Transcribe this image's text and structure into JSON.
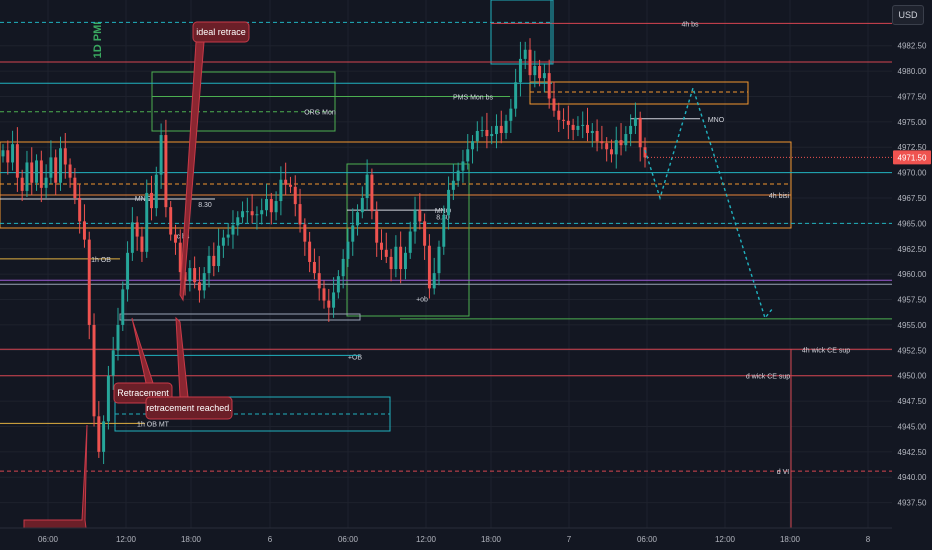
{
  "currency_button": "USD",
  "watermark": "1D PMI",
  "last_price_label": "4971.50",
  "chart_data": {
    "type": "candlestick",
    "instrument_currency": "USD",
    "ylim": [
      4935,
      4987
    ],
    "price_ticks": [
      "4982.50",
      "4980.00",
      "4977.50",
      "4975.00",
      "4972.50",
      "4970.00",
      "4967.50",
      "4965.00",
      "4962.50",
      "4960.00",
      "4957.50",
      "4955.00",
      "4952.50",
      "4950.00",
      "4947.50",
      "4945.00",
      "4942.50",
      "4940.00",
      "4937.50"
    ],
    "time_ticks": [
      "06:00",
      "12:00",
      "18:00",
      "6",
      "06:00",
      "12:00",
      "18:00",
      "7",
      "06:00",
      "12:00",
      "18:00",
      "8"
    ],
    "last_price": 4971.5,
    "closes": [
      4972.2,
      4971,
      4972.8,
      4969.5,
      4968.2,
      4971,
      4969,
      4971.2,
      4968.5,
      4969.5,
      4971.5,
      4969,
      4972.4,
      4970.8,
      4969.5,
      4967.5,
      4965.2,
      4963.4,
      4955,
      4946,
      4942.5,
      4945.5,
      4950,
      4952.5,
      4955,
      4958.5,
      4962.1,
      4965.1,
      4963.7,
      4962.2,
      4968,
      4966.5,
      4969.8,
      4973.7,
      4966.6,
      4963.9,
      4963.1,
      4960.2,
      4959.3,
      4960.6,
      4959.2,
      4958.4,
      4960.1,
      4961.8,
      4960.8,
      4962.8,
      4963.6,
      4963.9,
      4964.8,
      4965.6,
      4966.2,
      4966.2,
      4965.8,
      4965.9,
      4966.3,
      4967.4,
      4966.1,
      4967.2,
      4969.3,
      4968.8,
      4968.6,
      4966.9,
      4964.9,
      4963.2,
      4961.2,
      4960.1,
      4958.6,
      4957.4,
      4956.7,
      4958.2,
      4959.8,
      4961.5,
      4963.2,
      4964.8,
      4966.1,
      4967.5,
      4969.8,
      4966.2,
      4963.1,
      4962.4,
      4961.7,
      4960.5,
      4962.7,
      4960.5,
      4962.1,
      4964.2,
      4966.3,
      4965.2,
      4962.8,
      4958.6,
      4960.1,
      4962.7,
      4965.8,
      4968.3,
      4969.2,
      4970.2,
      4971.1,
      4972.3,
      4973.1,
      4974.1,
      4974.2,
      4973.6,
      4973.8,
      4974.6,
      4973.9,
      4975.1,
      4976.3,
      4978.9,
      4981.2,
      4982.1,
      4979.6,
      4980.5,
      4979.3,
      4979.8,
      4977.3,
      4976.1,
      4975.2,
      4975.1,
      4974.7,
      4974.2,
      4974.6,
      4974.7,
      4973.9,
      4974.1,
      4973.1,
      4972.9,
      4972.3,
      4971.8,
      4973.2,
      4972.7,
      4973.8,
      4974.6,
      4975.4,
      4972.5,
      4971.5
    ],
    "annotations": [
      "ideal retrace",
      "Retracement",
      "retracement reached."
    ],
    "levels": [
      {
        "label": "4h bs",
        "price": 4984.7,
        "color": "#d64550"
      },
      {
        "label": "PMS Mon bs",
        "price": 4977.5,
        "color": "#4caf50"
      },
      {
        "label": "ORG Mon",
        "price": 4976.0,
        "color": "#4caf50"
      },
      {
        "label": "MNO",
        "price": 4975.3,
        "color": "#d1d4dc"
      },
      {
        "label": "4h bisi",
        "price": 4967.8,
        "color": "#e8863a"
      },
      {
        "label": "1h OB",
        "price": 4961.5,
        "color": "#e0b040"
      },
      {
        "label": "4h wick CE sup",
        "price": 4952.6,
        "color": "#d64550"
      },
      {
        "label": "d wick CE sup",
        "price": 4950.0,
        "color": "#d64550"
      },
      {
        "label": "d VI",
        "price": 4940.6,
        "color": "#d64550"
      },
      {
        "label": "1h OB MT",
        "price": 4945.3,
        "color": "#e0b040"
      }
    ],
    "small_labels": [
      "MNO",
      "8.30",
      "c bs",
      "MNO",
      "8.30",
      "+ob",
      "+OB"
    ]
  }
}
